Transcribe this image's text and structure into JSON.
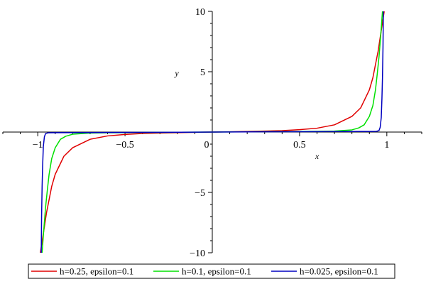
{
  "chart_data": {
    "type": "line",
    "xlabel": "x",
    "ylabel": "y",
    "xlim": [
      -1.2,
      1.2
    ],
    "ylim": [
      -10,
      10
    ],
    "x_ticks": [
      -1,
      -0.5,
      0,
      0.5,
      1
    ],
    "x_tick_labels": [
      "−1",
      "−0.5",
      "0",
      "0.5",
      "1"
    ],
    "y_ticks": [
      -10,
      -5,
      5,
      10
    ],
    "y_tick_labels": [
      "−10",
      "−5",
      "5",
      "10"
    ],
    "grid": false,
    "legend_position": "bottom",
    "series": [
      {
        "name": "h=0.25,  epsilon=0.1",
        "color": "#e00000",
        "h": 0.25,
        "epsilon": 0.1,
        "points": [
          [
            -0.985,
            -10
          ],
          [
            -0.97,
            -8.6
          ],
          [
            -0.95,
            -6.7
          ],
          [
            -0.92,
            -4.5
          ],
          [
            -0.9,
            -3.5
          ],
          [
            -0.85,
            -2.0
          ],
          [
            -0.8,
            -1.3
          ],
          [
            -0.7,
            -0.6
          ],
          [
            -0.6,
            -0.32
          ],
          [
            -0.5,
            -0.2
          ],
          [
            -0.4,
            -0.12
          ],
          [
            -0.3,
            -0.08
          ],
          [
            -0.2,
            -0.05
          ],
          [
            -0.1,
            -0.02
          ],
          [
            0,
            0
          ],
          [
            0.1,
            0.02
          ],
          [
            0.2,
            0.05
          ],
          [
            0.3,
            0.08
          ],
          [
            0.4,
            0.12
          ],
          [
            0.5,
            0.2
          ],
          [
            0.6,
            0.32
          ],
          [
            0.7,
            0.6
          ],
          [
            0.8,
            1.3
          ],
          [
            0.85,
            2.0
          ],
          [
            0.9,
            3.5
          ],
          [
            0.92,
            4.5
          ],
          [
            0.95,
            6.7
          ],
          [
            0.97,
            8.6
          ],
          [
            0.985,
            10
          ]
        ]
      },
      {
        "name": "h=0.1,   epsilon=0.1",
        "color": "#00e000",
        "h": 0.1,
        "epsilon": 0.1,
        "points": [
          [
            -0.975,
            -10
          ],
          [
            -0.965,
            -8.0
          ],
          [
            -0.955,
            -6.2
          ],
          [
            -0.945,
            -4.8
          ],
          [
            -0.935,
            -3.5
          ],
          [
            -0.92,
            -2.2
          ],
          [
            -0.9,
            -1.3
          ],
          [
            -0.87,
            -0.6
          ],
          [
            -0.84,
            -0.35
          ],
          [
            -0.8,
            -0.18
          ],
          [
            -0.7,
            -0.08
          ],
          [
            -0.6,
            -0.06
          ],
          [
            -0.4,
            -0.04
          ],
          [
            -0.2,
            -0.02
          ],
          [
            0,
            0
          ],
          [
            0.2,
            0.02
          ],
          [
            0.4,
            0.04
          ],
          [
            0.6,
            0.06
          ],
          [
            0.7,
            0.08
          ],
          [
            0.8,
            0.18
          ],
          [
            0.84,
            0.35
          ],
          [
            0.87,
            0.6
          ],
          [
            0.9,
            1.3
          ],
          [
            0.92,
            2.2
          ],
          [
            0.935,
            3.5
          ],
          [
            0.945,
            4.8
          ],
          [
            0.955,
            6.2
          ],
          [
            0.965,
            8.0
          ],
          [
            0.975,
            10
          ]
        ]
      },
      {
        "name": "h=0.025, epsilon=0.1",
        "color": "#0000c0",
        "h": 0.025,
        "epsilon": 0.1,
        "points": [
          [
            -0.98,
            -10
          ],
          [
            -0.978,
            -7.0
          ],
          [
            -0.975,
            -4.5
          ],
          [
            -0.972,
            -2.8
          ],
          [
            -0.968,
            -1.2
          ],
          [
            -0.962,
            -0.4
          ],
          [
            -0.955,
            -0.12
          ],
          [
            -0.94,
            -0.06
          ],
          [
            -0.9,
            -0.05
          ],
          [
            -0.6,
            -0.04
          ],
          [
            -0.3,
            -0.02
          ],
          [
            0,
            0
          ],
          [
            0.3,
            0.02
          ],
          [
            0.6,
            0.04
          ],
          [
            0.9,
            0.05
          ],
          [
            0.94,
            0.06
          ],
          [
            0.955,
            0.12
          ],
          [
            0.962,
            0.4
          ],
          [
            0.968,
            1.2
          ],
          [
            0.972,
            2.8
          ],
          [
            0.975,
            4.5
          ],
          [
            0.978,
            7.0
          ],
          [
            0.98,
            10
          ]
        ]
      }
    ]
  }
}
